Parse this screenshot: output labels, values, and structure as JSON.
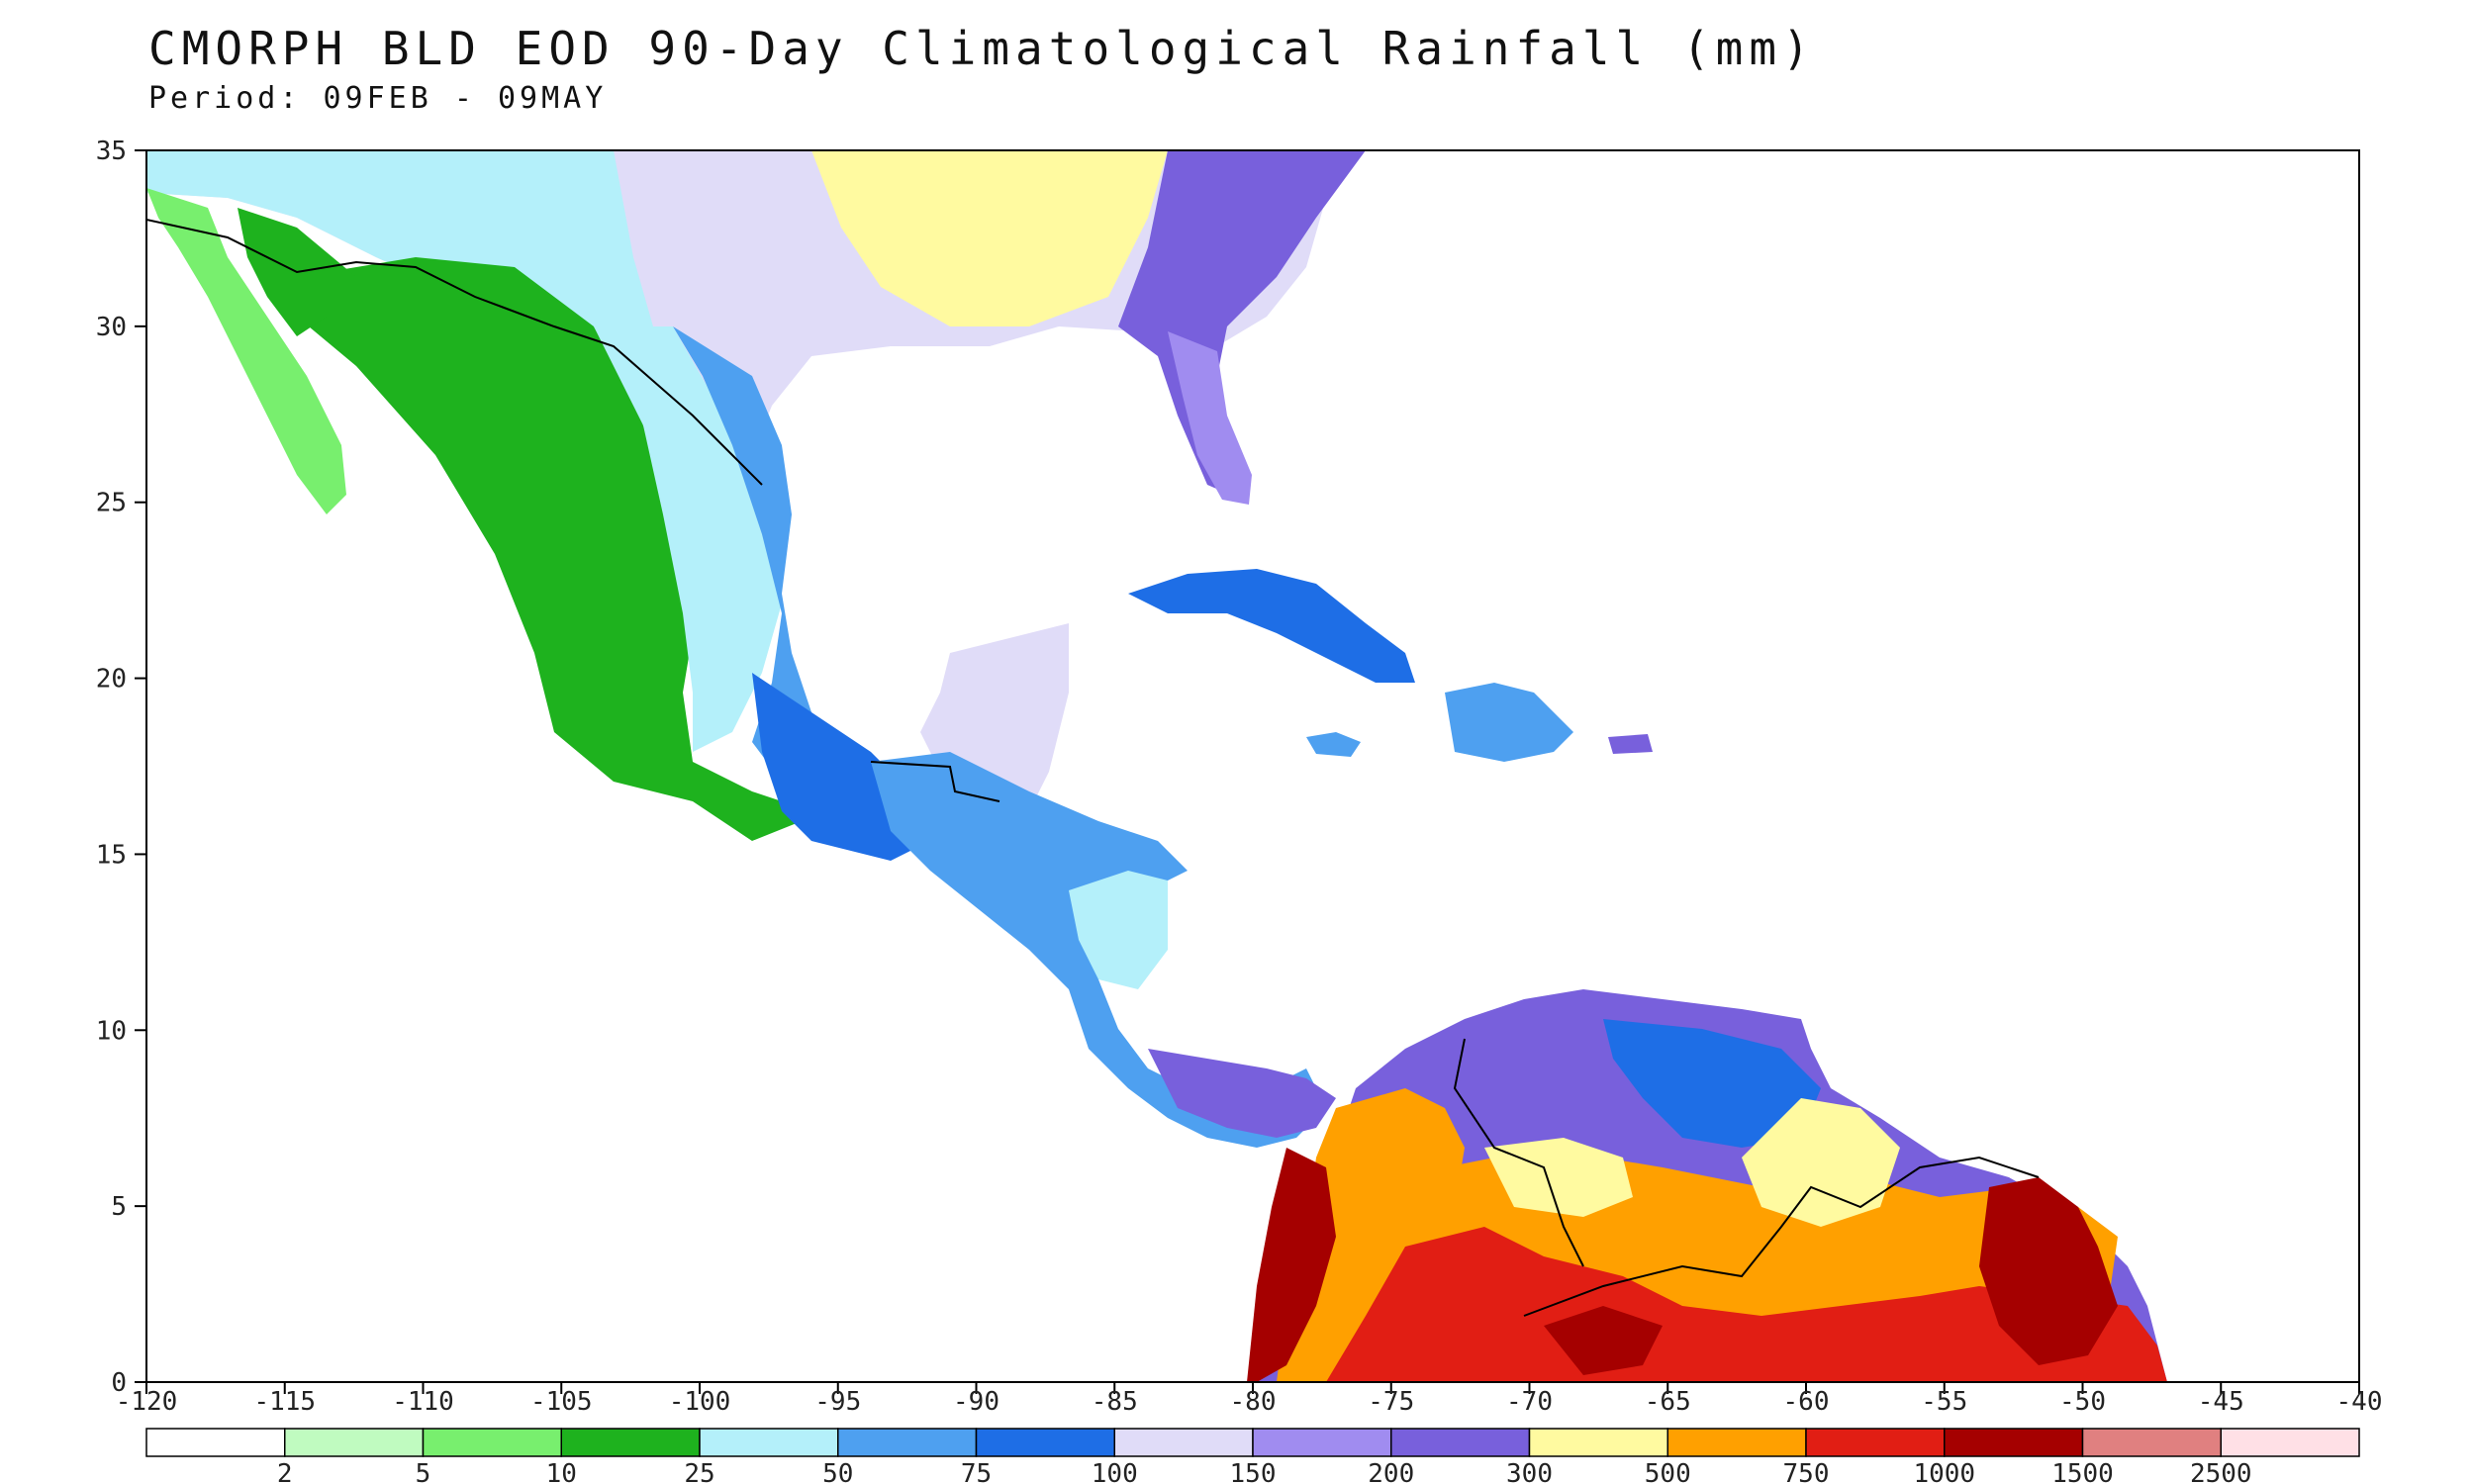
{
  "header": {
    "title": "CMORPH BLD EOD 90-Day Climatological Rainfall (mm)",
    "period": "Period: 09FEB - 09MAY"
  },
  "map": {
    "lon_range": [
      -120,
      -40
    ],
    "lat_range": [
      0,
      35
    ],
    "lon_ticks": [
      "-120",
      "-115",
      "-110",
      "-105",
      "-100",
      "-95",
      "-90",
      "-85",
      "-80",
      "-75",
      "-70",
      "-65",
      "-60",
      "-55",
      "-50",
      "-45",
      "-40"
    ],
    "lat_ticks": [
      "0",
      "5",
      "10",
      "15",
      "20",
      "25",
      "30",
      "35"
    ]
  },
  "colorbar": {
    "colors": [
      "#ffffff",
      "#c0fbc0",
      "#78ef6e",
      "#1eb21e",
      "#b4f0fa",
      "#4ea0f0",
      "#1e6ee6",
      "#e0dcf8",
      "#a08cf0",
      "#7860dc",
      "#fffaa0",
      "#ffa000",
      "#e11e14",
      "#a50000",
      "#e08080",
      "#ffe0e6"
    ],
    "labels": [
      "2",
      "5",
      "10",
      "25",
      "50",
      "75",
      "100",
      "150",
      "200",
      "300",
      "500",
      "750",
      "1000",
      "1500",
      "2500"
    ]
  }
}
